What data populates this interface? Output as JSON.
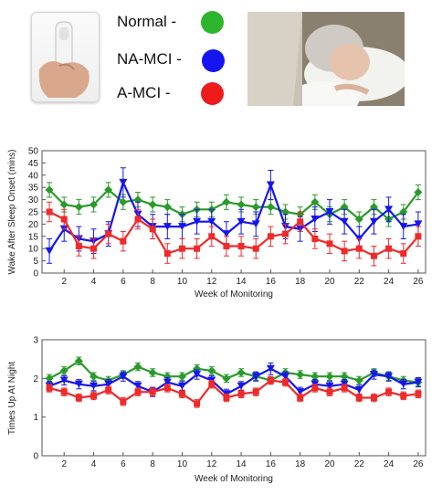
{
  "legend": [
    {
      "label": "Normal -",
      "color": "#2db52d"
    },
    {
      "label": "NA-MCI -",
      "color": "#1515f0"
    },
    {
      "label": "A-MCI -",
      "color": "#ee1b1b"
    }
  ],
  "images": {
    "device": "wearable-sensor-in-hand",
    "photo": "elderly-woman-sleeping"
  },
  "chart_data": [
    {
      "type": "line",
      "xlabel": "Week of Monitoring",
      "ylabel": "Wake After Sleep Onset (mins)",
      "xlim": [
        0.5,
        26.5
      ],
      "xticks": [
        2,
        4,
        6,
        8,
        10,
        12,
        14,
        16,
        18,
        20,
        22,
        24,
        26
      ],
      "ylim": [
        0,
        50
      ],
      "yticks": [
        0,
        5,
        10,
        15,
        20,
        25,
        30,
        35,
        40,
        45,
        50
      ],
      "grid": false,
      "x": [
        1,
        2,
        3,
        4,
        5,
        6,
        7,
        8,
        9,
        10,
        11,
        12,
        13,
        14,
        15,
        16,
        17,
        18,
        19,
        20,
        21,
        22,
        23,
        24,
        25,
        26
      ],
      "series": [
        {
          "name": "Normal",
          "color": "#2a9a2a",
          "marker": "diamond",
          "values": [
            34,
            28,
            27,
            28,
            34,
            29,
            30,
            28,
            27,
            24,
            26,
            26,
            29,
            28,
            27,
            27,
            25,
            24,
            29,
            24,
            27,
            22,
            27,
            22,
            25,
            33
          ],
          "errors": [
            3,
            3,
            3,
            3,
            3,
            3,
            3,
            3,
            3,
            3,
            3,
            3,
            3,
            3,
            3,
            3,
            3,
            3,
            3,
            3,
            3,
            3,
            3,
            3,
            3,
            3
          ]
        },
        {
          "name": "NA-MCI",
          "color": "#1515f0",
          "marker": "triangle-down",
          "values": [
            9,
            18,
            14,
            13,
            16,
            37,
            24,
            19,
            19,
            19,
            21,
            21,
            16,
            21,
            20,
            36,
            19,
            18,
            22,
            25,
            21,
            14,
            21,
            26,
            19,
            20
          ],
          "errors": [
            5,
            5,
            5,
            5,
            5,
            6,
            5,
            5,
            5,
            5,
            5,
            5,
            5,
            5,
            5,
            6,
            5,
            5,
            5,
            5,
            5,
            5,
            5,
            5,
            5,
            5
          ]
        },
        {
          "name": "A-MCI",
          "color": "#ee2a2a",
          "marker": "square",
          "values": [
            25,
            22,
            11,
            10,
            16,
            13,
            22,
            18,
            8,
            10,
            10,
            15,
            11,
            11,
            10,
            15,
            16,
            21,
            14,
            12,
            9,
            10,
            7,
            10,
            8,
            15
          ],
          "errors": [
            4,
            4,
            4,
            4,
            4,
            4,
            4,
            4,
            4,
            4,
            4,
            4,
            4,
            4,
            4,
            4,
            4,
            4,
            4,
            4,
            4,
            4,
            4,
            4,
            4,
            4
          ]
        }
      ]
    },
    {
      "type": "line",
      "xlabel": "Week of Monitoring",
      "ylabel": "Times Up At Night",
      "xlim": [
        0.5,
        26.5
      ],
      "xticks": [
        2,
        4,
        6,
        8,
        10,
        12,
        14,
        16,
        18,
        20,
        22,
        24,
        26
      ],
      "ylim": [
        0,
        3
      ],
      "yticks": [
        0,
        1,
        2,
        3
      ],
      "grid": false,
      "x": [
        1,
        2,
        3,
        4,
        5,
        6,
        7,
        8,
        9,
        10,
        11,
        12,
        13,
        14,
        15,
        16,
        17,
        18,
        19,
        20,
        21,
        22,
        23,
        24,
        25,
        26
      ],
      "series": [
        {
          "name": "Normal",
          "color": "#2a9a2a",
          "marker": "diamond",
          "values": [
            2.0,
            2.2,
            2.45,
            2.05,
            1.95,
            2.1,
            2.3,
            2.15,
            2.05,
            2.05,
            2.25,
            2.2,
            2.0,
            2.15,
            2.05,
            1.95,
            2.15,
            2.1,
            2.05,
            2.05,
            2.05,
            1.95,
            2.15,
            2.05,
            1.95,
            1.9
          ],
          "errors": [
            0.1,
            0.1,
            0.1,
            0.1,
            0.1,
            0.1,
            0.1,
            0.1,
            0.1,
            0.1,
            0.1,
            0.1,
            0.1,
            0.1,
            0.1,
            0.1,
            0.1,
            0.1,
            0.1,
            0.1,
            0.1,
            0.1,
            0.1,
            0.1,
            0.1,
            0.1
          ]
        },
        {
          "name": "NA-MCI",
          "color": "#1515f0",
          "marker": "triangle-down",
          "values": [
            1.8,
            1.95,
            1.85,
            1.8,
            1.85,
            2.05,
            1.8,
            1.65,
            1.9,
            1.8,
            2.1,
            1.95,
            1.6,
            1.8,
            2.05,
            2.25,
            2.05,
            1.65,
            1.85,
            1.8,
            1.85,
            1.7,
            2.1,
            2.05,
            1.85,
            1.9
          ],
          "errors": [
            0.12,
            0.12,
            0.12,
            0.12,
            0.12,
            0.12,
            0.12,
            0.12,
            0.12,
            0.12,
            0.12,
            0.12,
            0.12,
            0.12,
            0.12,
            0.15,
            0.12,
            0.12,
            0.12,
            0.12,
            0.12,
            0.12,
            0.12,
            0.12,
            0.12,
            0.12
          ]
        },
        {
          "name": "A-MCI",
          "color": "#ee2a2a",
          "marker": "square",
          "values": [
            1.75,
            1.65,
            1.5,
            1.55,
            1.7,
            1.4,
            1.65,
            1.65,
            1.75,
            1.6,
            1.35,
            1.85,
            1.5,
            1.6,
            1.65,
            1.95,
            1.9,
            1.5,
            1.75,
            1.65,
            1.75,
            1.5,
            1.5,
            1.65,
            1.55,
            1.6
          ],
          "errors": [
            0.1,
            0.1,
            0.1,
            0.1,
            0.1,
            0.1,
            0.1,
            0.1,
            0.1,
            0.1,
            0.1,
            0.1,
            0.1,
            0.1,
            0.1,
            0.1,
            0.1,
            0.1,
            0.1,
            0.1,
            0.1,
            0.1,
            0.1,
            0.1,
            0.1,
            0.1
          ]
        }
      ]
    }
  ]
}
